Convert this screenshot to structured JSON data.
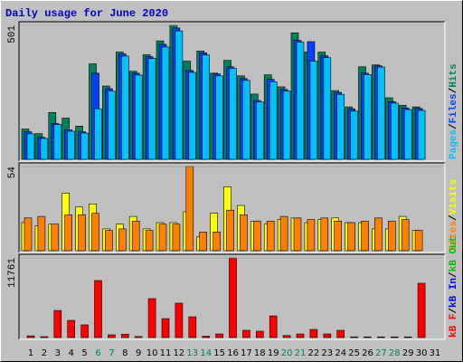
{
  "title": "Daily usage for June 2020",
  "legend_separator": "/",
  "chart_data": [
    {
      "type": "bar",
      "ylim": [
        0,
        501
      ],
      "yticks": [
        501
      ],
      "series": [
        {
          "name": "Hits",
          "color": "#00805c",
          "values": [
            113,
            96,
            175,
            154,
            124,
            357,
            274,
            401,
            329,
            391,
            443,
            501,
            367,
            405,
            322,
            370,
            312,
            244,
            316,
            271,
            473,
            401,
            401,
            257,
            196,
            346,
            353,
            230,
            202,
            196,
            0
          ]
        },
        {
          "name": "Files",
          "color": "#0040ff",
          "values": [
            103,
            82,
            134,
            110,
            103,
            322,
            264,
            394,
            322,
            384,
            430,
            491,
            332,
            398,
            319,
            346,
            302,
            220,
            299,
            261,
            445,
            440,
            387,
            250,
            189,
            322,
            350,
            216,
            192,
            190,
            0
          ]
        },
        {
          "name": "Pages",
          "color": "#00c0ff",
          "values": [
            95,
            78,
            130,
            105,
            98,
            189,
            255,
            386,
            315,
            377,
            420,
            480,
            325,
            390,
            312,
            340,
            295,
            214,
            290,
            255,
            438,
            367,
            380,
            243,
            180,
            316,
            345,
            210,
            186,
            183,
            0
          ]
        }
      ]
    },
    {
      "type": "bar",
      "ylim": [
        0,
        54
      ],
      "yticks": [
        54
      ],
      "series": [
        {
          "name": "Visits",
          "color": "#ffff00",
          "values": [
            18,
            16,
            17,
            37,
            28,
            30,
            14,
            17,
            22,
            14,
            18,
            18,
            25,
            9,
            24,
            41,
            29,
            19,
            17,
            20,
            21,
            18,
            20,
            21,
            18,
            18,
            14,
            14,
            22,
            13,
            0
          ]
        },
        {
          "name": "Sites",
          "color": "#ff8000",
          "values": [
            21,
            22,
            17,
            23,
            23,
            24,
            13,
            14,
            19,
            13,
            17,
            17,
            54,
            12,
            12,
            26,
            23,
            19,
            19,
            22,
            21,
            20,
            21,
            19,
            18,
            19,
            21,
            19,
            20,
            13,
            0
          ]
        }
      ]
    },
    {
      "type": "bar",
      "ylim": [
        0,
        11761
      ],
      "yticks": [
        11761
      ],
      "categories": [
        "1",
        "2",
        "3",
        "4",
        "5",
        "6",
        "7",
        "8",
        "9",
        "10",
        "11",
        "12",
        "13",
        "14",
        "15",
        "16",
        "17",
        "18",
        "19",
        "20",
        "21",
        "22",
        "23",
        "24",
        "25",
        "26",
        "27",
        "28",
        "29",
        "30",
        "31"
      ],
      "category_colors": [
        "#000000",
        "#000000",
        "#000000",
        "#000000",
        "#000000",
        "#00805c",
        "#00805c",
        "#000000",
        "#000000",
        "#000000",
        "#000000",
        "#000000",
        "#00805c",
        "#00805c",
        "#000000",
        "#000000",
        "#000000",
        "#000000",
        "#000000",
        "#00805c",
        "#00805c",
        "#000000",
        "#000000",
        "#000000",
        "#000000",
        "#000000",
        "#00805c",
        "#00805c",
        "#000000",
        "#000000",
        "#000000"
      ],
      "series": [
        {
          "name": "kB Out",
          "color": "#00c000",
          "values": [
            0,
            0,
            0,
            0,
            0,
            0,
            0,
            0,
            0,
            0,
            0,
            0,
            0,
            0,
            0,
            0,
            0,
            0,
            0,
            0,
            0,
            0,
            0,
            0,
            0,
            0,
            0,
            0,
            0,
            0,
            0
          ]
        },
        {
          "name": "kB In",
          "color": "#0000ff",
          "values": [
            0,
            0,
            0,
            0,
            0,
            0,
            0,
            0,
            0,
            0,
            0,
            0,
            0,
            0,
            0,
            0,
            0,
            0,
            0,
            0,
            0,
            0,
            0,
            0,
            0,
            0,
            0,
            0,
            0,
            0,
            0
          ]
        },
        {
          "name": "kB F",
          "color": "#ff0000",
          "values": [
            250,
            130,
            4000,
            2540,
            1870,
            8420,
            400,
            500,
            150,
            5750,
            2800,
            5080,
            3070,
            200,
            530,
            11761,
            1070,
            940,
            3200,
            300,
            530,
            1200,
            530,
            1070,
            100,
            100,
            100,
            100,
            100,
            8020,
            0
          ]
        }
      ]
    }
  ]
}
